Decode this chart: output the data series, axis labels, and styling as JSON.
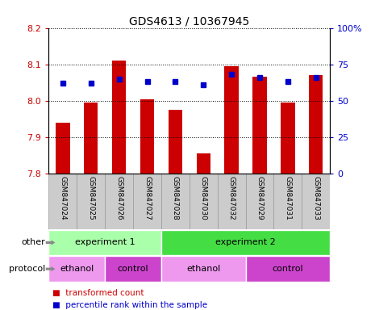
{
  "title": "GDS4613 / 10367945",
  "samples": [
    "GSM847024",
    "GSM847025",
    "GSM847026",
    "GSM847027",
    "GSM847028",
    "GSM847030",
    "GSM847032",
    "GSM847029",
    "GSM847031",
    "GSM847033"
  ],
  "bar_values": [
    7.94,
    7.995,
    8.11,
    8.005,
    7.975,
    7.855,
    8.095,
    8.065,
    7.995,
    8.07
  ],
  "dot_values": [
    62,
    62,
    65,
    63,
    63,
    61,
    68,
    66,
    63,
    66
  ],
  "bar_bottom": 7.8,
  "ylim_left": [
    7.8,
    8.2
  ],
  "ylim_right": [
    0,
    100
  ],
  "yticks_left": [
    7.8,
    7.9,
    8.0,
    8.1,
    8.2
  ],
  "yticks_right": [
    0,
    25,
    50,
    75,
    100
  ],
  "bar_color": "#cc0000",
  "dot_color": "#0000cc",
  "left_tick_color": "#cc0000",
  "right_tick_color": "#0000cc",
  "other_row": [
    {
      "label": "experiment 1",
      "start": 0,
      "end": 4,
      "color": "#aaffaa"
    },
    {
      "label": "experiment 2",
      "start": 4,
      "end": 10,
      "color": "#44dd44"
    }
  ],
  "protocol_row": [
    {
      "label": "ethanol",
      "start": 0,
      "end": 2,
      "color": "#ee99ee"
    },
    {
      "label": "control",
      "start": 2,
      "end": 4,
      "color": "#cc44cc"
    },
    {
      "label": "ethanol",
      "start": 4,
      "end": 7,
      "color": "#ee99ee"
    },
    {
      "label": "control",
      "start": 7,
      "end": 10,
      "color": "#cc44cc"
    }
  ],
  "xticklabel_bg": "#cccccc",
  "xticklabel_border": "#999999",
  "fig_width": 4.65,
  "fig_height": 3.84
}
